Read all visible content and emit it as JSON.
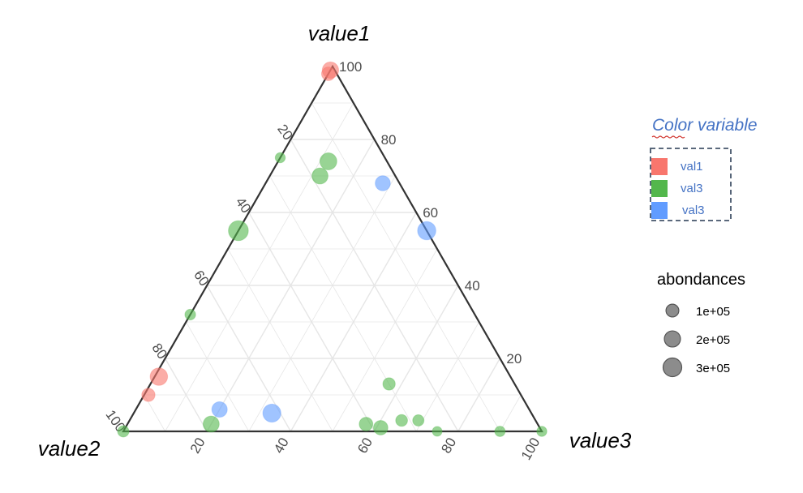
{
  "chart_data": {
    "type": "scatter",
    "subtype": "ternary",
    "axes": {
      "top": {
        "label": "value1"
      },
      "left": {
        "label": "value2"
      },
      "right": {
        "label": "value3"
      }
    },
    "ticks": [
      20,
      40,
      60,
      80,
      100
    ],
    "grid": true,
    "grid_step": 10,
    "color_legend": {
      "title": "Color variable",
      "entries": [
        {
          "label": "val1",
          "color": "#f8766d"
        },
        {
          "label": "val3",
          "color": "#53b74c"
        },
        {
          "label": "val3",
          "color": "#619cff"
        }
      ]
    },
    "size_legend": {
      "title": "abondances",
      "entries": [
        {
          "label": "1e+05",
          "value": 100000
        },
        {
          "label": "2e+05",
          "value": 200000
        },
        {
          "label": "3e+05",
          "value": 300000
        }
      ]
    },
    "points": [
      {
        "value1": 99,
        "value2": 1,
        "value3": 0,
        "group": 0,
        "size": 180000
      },
      {
        "value1": 98,
        "value2": 2,
        "value3": 0,
        "group": 0,
        "size": 100000
      },
      {
        "value1": 15,
        "value2": 84,
        "value3": 1,
        "group": 0,
        "size": 220000
      },
      {
        "value1": 10,
        "value2": 89,
        "value3": 1,
        "group": 0,
        "size": 90000
      },
      {
        "value1": 74,
        "value2": 14,
        "value3": 12,
        "group": 1,
        "size": 200000
      },
      {
        "value1": 70,
        "value2": 18,
        "value3": 12,
        "group": 1,
        "size": 170000
      },
      {
        "value1": 75,
        "value2": 25,
        "value3": 0,
        "group": 1,
        "size": 30000
      },
      {
        "value1": 55,
        "value2": 45,
        "value3": 0,
        "group": 1,
        "size": 320000
      },
      {
        "value1": 32,
        "value2": 68,
        "value3": 0,
        "group": 1,
        "size": 40000
      },
      {
        "value1": 2,
        "value2": 78,
        "value3": 20,
        "group": 1,
        "size": 170000
      },
      {
        "value1": 13,
        "value2": 30,
        "value3": 57,
        "group": 1,
        "size": 70000
      },
      {
        "value1": 2,
        "value2": 41,
        "value3": 57,
        "group": 1,
        "size": 100000
      },
      {
        "value1": 1,
        "value2": 38,
        "value3": 61,
        "group": 1,
        "size": 120000
      },
      {
        "value1": 3,
        "value2": 32,
        "value3": 65,
        "group": 1,
        "size": 60000
      },
      {
        "value1": 3,
        "value2": 28,
        "value3": 69,
        "group": 1,
        "size": 50000
      },
      {
        "value1": 0,
        "value2": 25,
        "value3": 75,
        "group": 1,
        "size": 25000
      },
      {
        "value1": 0,
        "value2": 10,
        "value3": 90,
        "group": 1,
        "size": 35000
      },
      {
        "value1": 0,
        "value2": 100,
        "value3": 0,
        "group": 1,
        "size": 50000
      },
      {
        "value1": 0,
        "value2": 0,
        "value3": 100,
        "group": 1,
        "size": 30000
      },
      {
        "value1": 68,
        "value2": 4,
        "value3": 28,
        "group": 2,
        "size": 140000
      },
      {
        "value1": 55,
        "value2": 0,
        "value3": 45,
        "group": 2,
        "size": 250000
      },
      {
        "value1": 6,
        "value2": 74,
        "value3": 20,
        "group": 2,
        "size": 150000
      },
      {
        "value1": 5,
        "value2": 62,
        "value3": 33,
        "group": 2,
        "size": 240000
      }
    ]
  }
}
